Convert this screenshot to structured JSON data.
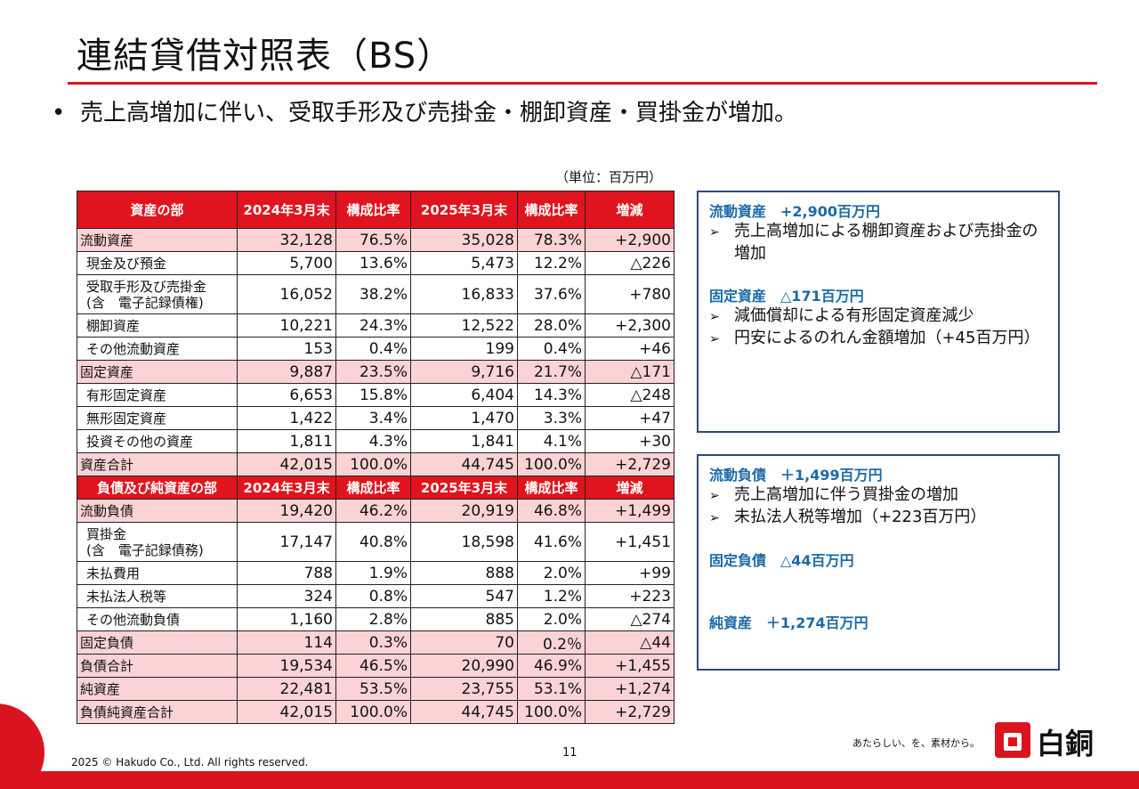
{
  "title": "連結貸借対照表（BS）",
  "bullet": "売上高増加に伴い、受取手形及び売掛金・棚卸資産・買掛金が増加。",
  "unit": "（単位：百万円）",
  "assets_header": [
    "資産の部",
    "2024年3月末",
    "構成比率",
    "2025年3月末",
    "構成比率",
    "増減"
  ],
  "assets_rows": [
    {
      "label": "流動資産",
      "v1": "32,128",
      "r1": "76.5%",
      "v2": "35,028",
      "r2": "78.3%",
      "d": "+2,900"
    },
    {
      "label": "現金及び預金",
      "v1": "5,700",
      "r1": "13.6%",
      "v2": "5,473",
      "r2": "12.2%",
      "d": "△226"
    },
    {
      "label": "受取手形及び売掛金",
      "label2": "(含　電子記録債権)",
      "v1": "16,052",
      "r1": "38.2%",
      "v2": "16,833",
      "r2": "37.6%",
      "d": "+780"
    },
    {
      "label": "棚卸資産",
      "v1": "10,221",
      "r1": "24.3%",
      "v2": "12,522",
      "r2": "28.0%",
      "d": "+2,300"
    },
    {
      "label": "その他流動資産",
      "v1": "153",
      "r1": "0.4%",
      "v2": "199",
      "r2": "0.4%",
      "d": "+46"
    },
    {
      "label": "固定資産",
      "v1": "9,887",
      "r1": "23.5%",
      "v2": "9,716",
      "r2": "21.7%",
      "d": "△171"
    },
    {
      "label": "有形固定資産",
      "v1": "6,653",
      "r1": "15.8%",
      "v2": "6,404",
      "r2": "14.3%",
      "d": "△248"
    },
    {
      "label": "無形固定資産",
      "v1": "1,422",
      "r1": "3.4%",
      "v2": "1,470",
      "r2": "3.3%",
      "d": "+47"
    },
    {
      "label": "投資その他の資産",
      "v1": "1,811",
      "r1": "4.3%",
      "v2": "1,841",
      "r2": "4.1%",
      "d": "+30"
    },
    {
      "label": "資産合計",
      "v1": "42,015",
      "r1": "100.0%",
      "v2": "44,745",
      "r2": "100.0%",
      "d": "+2,729"
    }
  ],
  "liab_header": [
    "負債及び純資産の部",
    "2024年3月末",
    "構成比率",
    "2025年3月末",
    "構成比率",
    "増減"
  ],
  "liab_rows": [
    {
      "label": "流動負債",
      "v1": "19,420",
      "r1": "46.2%",
      "v2": "20,919",
      "r2": "46.8%",
      "d": "+1,499"
    },
    {
      "label": "買掛金",
      "label2": "(含　電子記録債務)",
      "v1": "17,147",
      "r1": "40.8%",
      "v2": "18,598",
      "r2": "41.6%",
      "d": "+1,451"
    },
    {
      "label": "未払費用",
      "v1": "788",
      "r1": "1.9%",
      "v2": "888",
      "r2": "2.0%",
      "d": "+99"
    },
    {
      "label": "未払法人税等",
      "v1": "324",
      "r1": "0.8%",
      "v2": "547",
      "r2": "1.2%",
      "d": "+223"
    },
    {
      "label": "その他流動負債",
      "v1": "1,160",
      "r1": "2.8%",
      "v2": "885",
      "r2": "2.0%",
      "d": "△274"
    },
    {
      "label": "固定負債",
      "v1": "114",
      "r1": "0.3%",
      "v2": "70",
      "r2": "0.2％",
      "d": "△44"
    },
    {
      "label": "負債合計",
      "v1": "19,534",
      "r1": "46.5%",
      "v2": "20,990",
      "r2": "46.9%",
      "d": "+1,455"
    },
    {
      "label": "純資産",
      "v1": "22,481",
      "r1": "53.5%",
      "v2": "23,755",
      "r2": "53.1%",
      "d": "+1,274"
    },
    {
      "label": "負債純資産合計",
      "v1": "42,015",
      "r1": "100.0%",
      "v2": "44,745",
      "r2": "100.0%",
      "d": "+2,729"
    }
  ],
  "box1": {
    "h1": "流動資産　+2,900百万円",
    "i1": "売上高増加による棚卸資産および売掛金の増加",
    "h2": "固定資産　△171百万円",
    "i2": "減価償却による有形固定資産減少",
    "i3": "円安によるのれん金額増加（+45百万円）"
  },
  "box2": {
    "h1": "流動負債　＋1,499百万円",
    "i1": "売上高増加に伴う買掛金の増加",
    "i2": "未払法人税等増加（+223百万円）",
    "h2": "固定負債　△44百万円",
    "h3": "純資産　＋1,274百万円"
  },
  "page_number": "11",
  "copyright": "2025 © Hakudo Co., Ltd. All rights reserved.",
  "slogan": "あたらしい、を、素材から。",
  "logo_text": "白銅"
}
